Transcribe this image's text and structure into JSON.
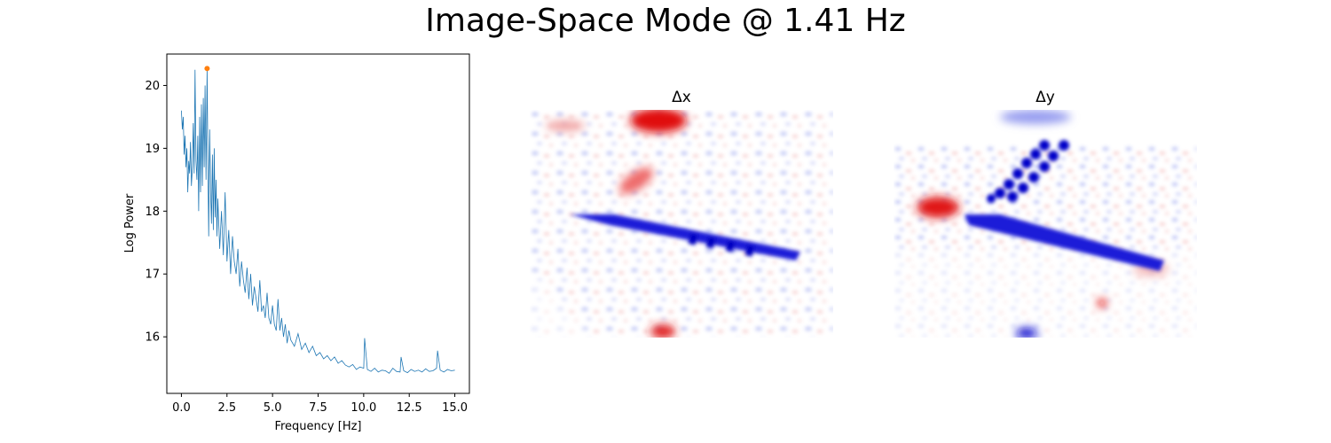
{
  "figure": {
    "suptitle": "Image-Space Mode @ 1.41 Hz"
  },
  "chart_data": [
    {
      "type": "line",
      "title": "",
      "xlabel": "Frequency [Hz]",
      "ylabel": "Log Power",
      "xlim": [
        -0.8,
        15.8
      ],
      "ylim": [
        15.1,
        20.5
      ],
      "xticks": [
        0.0,
        2.5,
        5.0,
        7.5,
        10.0,
        12.5,
        15.0
      ],
      "xtick_labels": [
        "0.0",
        "2.5",
        "5.0",
        "7.5",
        "10.0",
        "12.5",
        "15.0"
      ],
      "yticks": [
        16,
        17,
        18,
        19,
        20
      ],
      "ytick_labels": [
        "16",
        "17",
        "18",
        "19",
        "20"
      ],
      "grid": false,
      "series": [
        {
          "color": "#1f77b4",
          "x": [
            0.0,
            0.05,
            0.1,
            0.15,
            0.2,
            0.25,
            0.3,
            0.35,
            0.4,
            0.45,
            0.5,
            0.55,
            0.6,
            0.65,
            0.7,
            0.75,
            0.8,
            0.85,
            0.9,
            0.95,
            1.0,
            1.05,
            1.1,
            1.15,
            1.2,
            1.25,
            1.3,
            1.35,
            1.41,
            1.45,
            1.5,
            1.55,
            1.6,
            1.65,
            1.7,
            1.75,
            1.8,
            1.85,
            1.9,
            1.95,
            2.0,
            2.1,
            2.2,
            2.3,
            2.4,
            2.5,
            2.6,
            2.7,
            2.8,
            2.9,
            3.0,
            3.1,
            3.2,
            3.3,
            3.4,
            3.5,
            3.6,
            3.7,
            3.8,
            3.9,
            4.0,
            4.1,
            4.2,
            4.3,
            4.4,
            4.5,
            4.6,
            4.7,
            4.8,
            4.9,
            5.0,
            5.1,
            5.2,
            5.3,
            5.4,
            5.5,
            5.6,
            5.7,
            5.8,
            5.9,
            6.0,
            6.2,
            6.4,
            6.6,
            6.8,
            7.0,
            7.2,
            7.4,
            7.6,
            7.8,
            8.0,
            8.2,
            8.4,
            8.6,
            8.8,
            9.0,
            9.2,
            9.4,
            9.6,
            9.8,
            10.0,
            10.05,
            10.2,
            10.4,
            10.6,
            10.8,
            11.0,
            11.2,
            11.4,
            11.6,
            11.8,
            12.0,
            12.05,
            12.2,
            12.4,
            12.6,
            12.8,
            13.0,
            13.2,
            13.4,
            13.6,
            13.8,
            14.0,
            14.05,
            14.2,
            14.4,
            14.6,
            14.8,
            15.0
          ],
          "y": [
            19.6,
            19.3,
            19.5,
            18.9,
            19.2,
            18.7,
            19.0,
            18.3,
            18.8,
            18.6,
            19.1,
            18.4,
            18.7,
            19.4,
            18.6,
            20.25,
            18.8,
            18.5,
            19.2,
            18.0,
            19.5,
            18.3,
            19.7,
            18.4,
            19.8,
            18.7,
            20.0,
            18.5,
            20.27,
            18.9,
            17.6,
            19.3,
            18.3,
            17.8,
            18.9,
            17.7,
            19.0,
            17.9,
            18.5,
            17.6,
            18.2,
            17.4,
            18.0,
            17.3,
            18.3,
            17.2,
            17.7,
            17.0,
            17.6,
            17.2,
            17.0,
            17.4,
            16.8,
            17.2,
            16.9,
            16.7,
            17.1,
            16.6,
            17.0,
            16.5,
            16.8,
            16.6,
            16.4,
            16.9,
            16.4,
            16.5,
            16.3,
            16.7,
            16.3,
            16.2,
            16.5,
            16.2,
            16.1,
            16.6,
            16.1,
            16.3,
            16.0,
            16.2,
            15.9,
            16.1,
            15.95,
            15.85,
            16.05,
            15.8,
            15.9,
            15.75,
            15.85,
            15.7,
            15.75,
            15.65,
            15.7,
            15.62,
            15.68,
            15.58,
            15.62,
            15.55,
            15.52,
            15.56,
            15.48,
            15.52,
            15.5,
            15.98,
            15.48,
            15.45,
            15.5,
            15.44,
            15.47,
            15.46,
            15.42,
            15.5,
            15.45,
            15.44,
            15.68,
            15.46,
            15.43,
            15.48,
            15.45,
            15.47,
            15.44,
            15.49,
            15.45,
            15.46,
            15.5,
            15.78,
            15.47,
            15.44,
            15.48,
            15.46,
            15.47
          ]
        }
      ],
      "annotations": [
        {
          "type": "marker",
          "x": 1.41,
          "y": 20.27,
          "color": "#ff7f0e"
        }
      ]
    },
    {
      "type": "heatmap",
      "title": "Δx",
      "colormap": "seismic",
      "colors": {
        "negative": "#0000e0",
        "positive": "#e01010"
      }
    },
    {
      "type": "heatmap",
      "title": "Δy",
      "colormap": "seismic",
      "colors": {
        "negative": "#0000e0",
        "positive": "#e01010"
      }
    }
  ]
}
